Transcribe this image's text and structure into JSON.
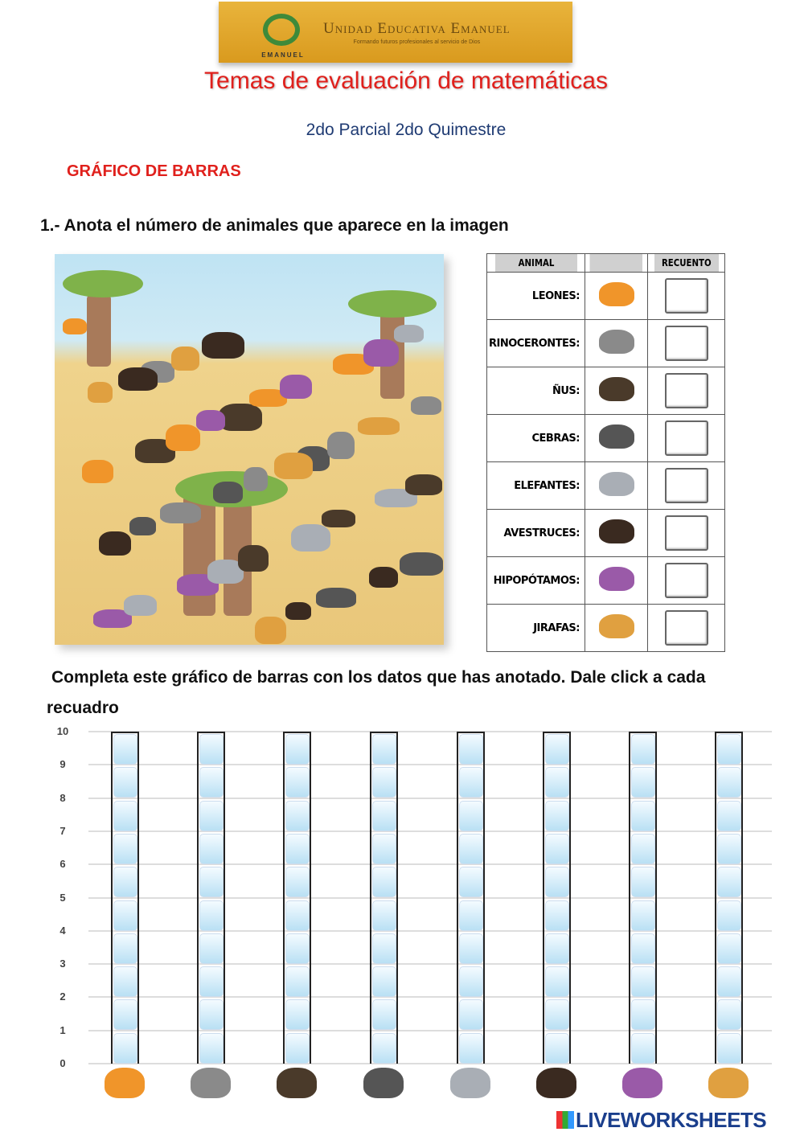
{
  "header": {
    "school_name": "Unidad Educativa Emanuel",
    "school_motto": "Formando futuros profesionales al servicio de Dios",
    "logo_text": "EMANUEL"
  },
  "title": "Temas de evaluación de matemáticas",
  "subtitle": "2do Parcial 2do Quimestre",
  "section": "GRÁFICO DE BARRAS",
  "question1": "1.- Anota el número de animales que aparece en la imagen",
  "table": {
    "headers": [
      "ANIMAL",
      "",
      "RECUENTO"
    ],
    "rows": [
      {
        "label": "LEONES:",
        "icon": "lion-icon",
        "color": "#f0952a",
        "value": ""
      },
      {
        "label": "RINOCERONTES:",
        "icon": "rhino-icon",
        "color": "#8a8a8a",
        "value": ""
      },
      {
        "label": "ÑUS:",
        "icon": "wildebeest-icon",
        "color": "#4a3a2a",
        "value": ""
      },
      {
        "label": "CEBRAS:",
        "icon": "zebra-icon",
        "color": "#555555",
        "value": ""
      },
      {
        "label": "ELEFANTES:",
        "icon": "elephant-icon",
        "color": "#a9aeb5",
        "value": ""
      },
      {
        "label": "AVESTRUCES:",
        "icon": "ostrich-icon",
        "color": "#3a2a20",
        "value": ""
      },
      {
        "label": "HIPOPÓTAMOS:",
        "icon": "hippo-icon",
        "color": "#9a5aa8",
        "value": ""
      },
      {
        "label": "JIRAFAS:",
        "icon": "giraffe-icon",
        "color": "#e0a040",
        "value": ""
      }
    ]
  },
  "instruction": "Completa este gráfico de barras con los datos que has anotado. Dale click a cada recuadro",
  "chart_data": {
    "type": "bar",
    "categories": [
      "leones",
      "rinocerontes",
      "ñus",
      "cebras",
      "elefantes",
      "avestruces",
      "hipopótamos",
      "jirafas"
    ],
    "values": [
      null,
      null,
      null,
      null,
      null,
      null,
      null,
      null
    ],
    "yticks": [
      "0",
      "1",
      "2",
      "3",
      "4",
      "5",
      "6",
      "7",
      "8",
      "9",
      "10"
    ],
    "ylim": [
      0,
      10
    ],
    "grid": true
  },
  "footer": {
    "brand": "LIVEWORKSHEETS"
  }
}
